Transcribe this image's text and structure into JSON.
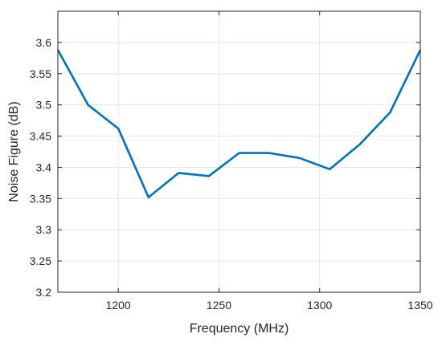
{
  "chart_data": {
    "type": "line",
    "xlabel": "Frequency (MHz)",
    "ylabel": "Noise Figure (dB)",
    "xlim": [
      1170,
      1350
    ],
    "ylim": [
      3.2,
      3.65
    ],
    "xticks": [
      1200,
      1250,
      1300,
      1350
    ],
    "yticks": [
      3.2,
      3.25,
      3.3,
      3.35,
      3.4,
      3.45,
      3.5,
      3.55,
      3.6
    ],
    "xtick_labels": [
      "1200",
      "1250",
      "1300",
      "1350"
    ],
    "ytick_labels": [
      "3.2",
      "3.25",
      "3.3",
      "3.35",
      "3.4",
      "3.45",
      "3.5",
      "3.55",
      "3.6"
    ],
    "grid": true,
    "series": [
      {
        "color": "#0072bd",
        "x": [
          1170,
          1185,
          1200,
          1215,
          1230,
          1245,
          1260,
          1275,
          1290,
          1305,
          1320,
          1335,
          1350
        ],
        "y": [
          3.588,
          3.5,
          3.462,
          3.352,
          3.391,
          3.386,
          3.423,
          3.423,
          3.415,
          3.397,
          3.437,
          3.488,
          3.588
        ]
      }
    ]
  }
}
